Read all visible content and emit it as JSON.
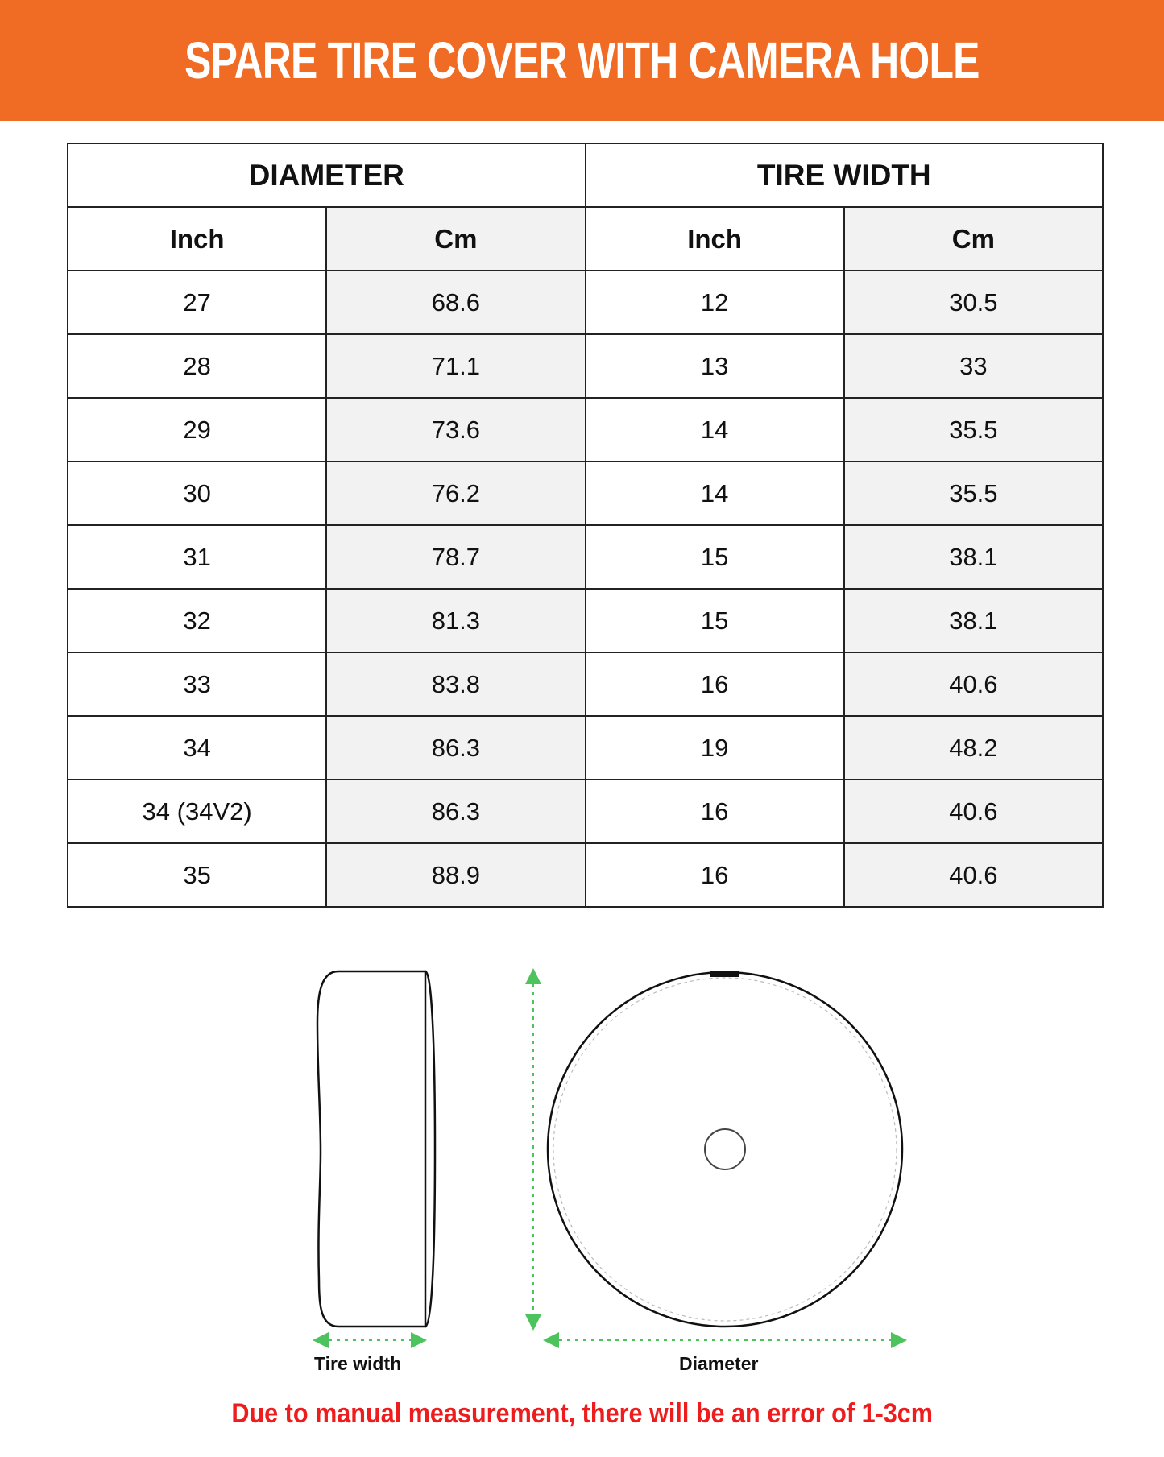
{
  "title": "SPARE TIRE COVER WITH CAMERA HOLE",
  "colors": {
    "banner": "#f06b24",
    "note": "#ee1c1c",
    "arrow": "#4cc35c"
  },
  "table": {
    "groups": [
      "DIAMETER",
      "TIRE WIDTH"
    ],
    "subheaders": [
      "Inch",
      "Cm",
      "Inch",
      "Cm"
    ],
    "rows": [
      [
        "27",
        "68.6",
        "12",
        "30.5"
      ],
      [
        "28",
        "71.1",
        "13",
        "33"
      ],
      [
        "29",
        "73.6",
        "14",
        "35.5"
      ],
      [
        "30",
        "76.2",
        "14",
        "35.5"
      ],
      [
        "31",
        "78.7",
        "15",
        "38.1"
      ],
      [
        "32",
        "81.3",
        "15",
        "38.1"
      ],
      [
        "33",
        "83.8",
        "16",
        "40.6"
      ],
      [
        "34",
        "86.3",
        "19",
        "48.2"
      ],
      [
        "34 (34V2)",
        "86.3",
        "16",
        "40.6"
      ],
      [
        "35",
        "88.9",
        "16",
        "40.6"
      ]
    ]
  },
  "diagram": {
    "tire_width_label": "Tire width",
    "diameter_label": "Diameter"
  },
  "note": "Due to manual measurement, there will be an error of 1-3cm"
}
